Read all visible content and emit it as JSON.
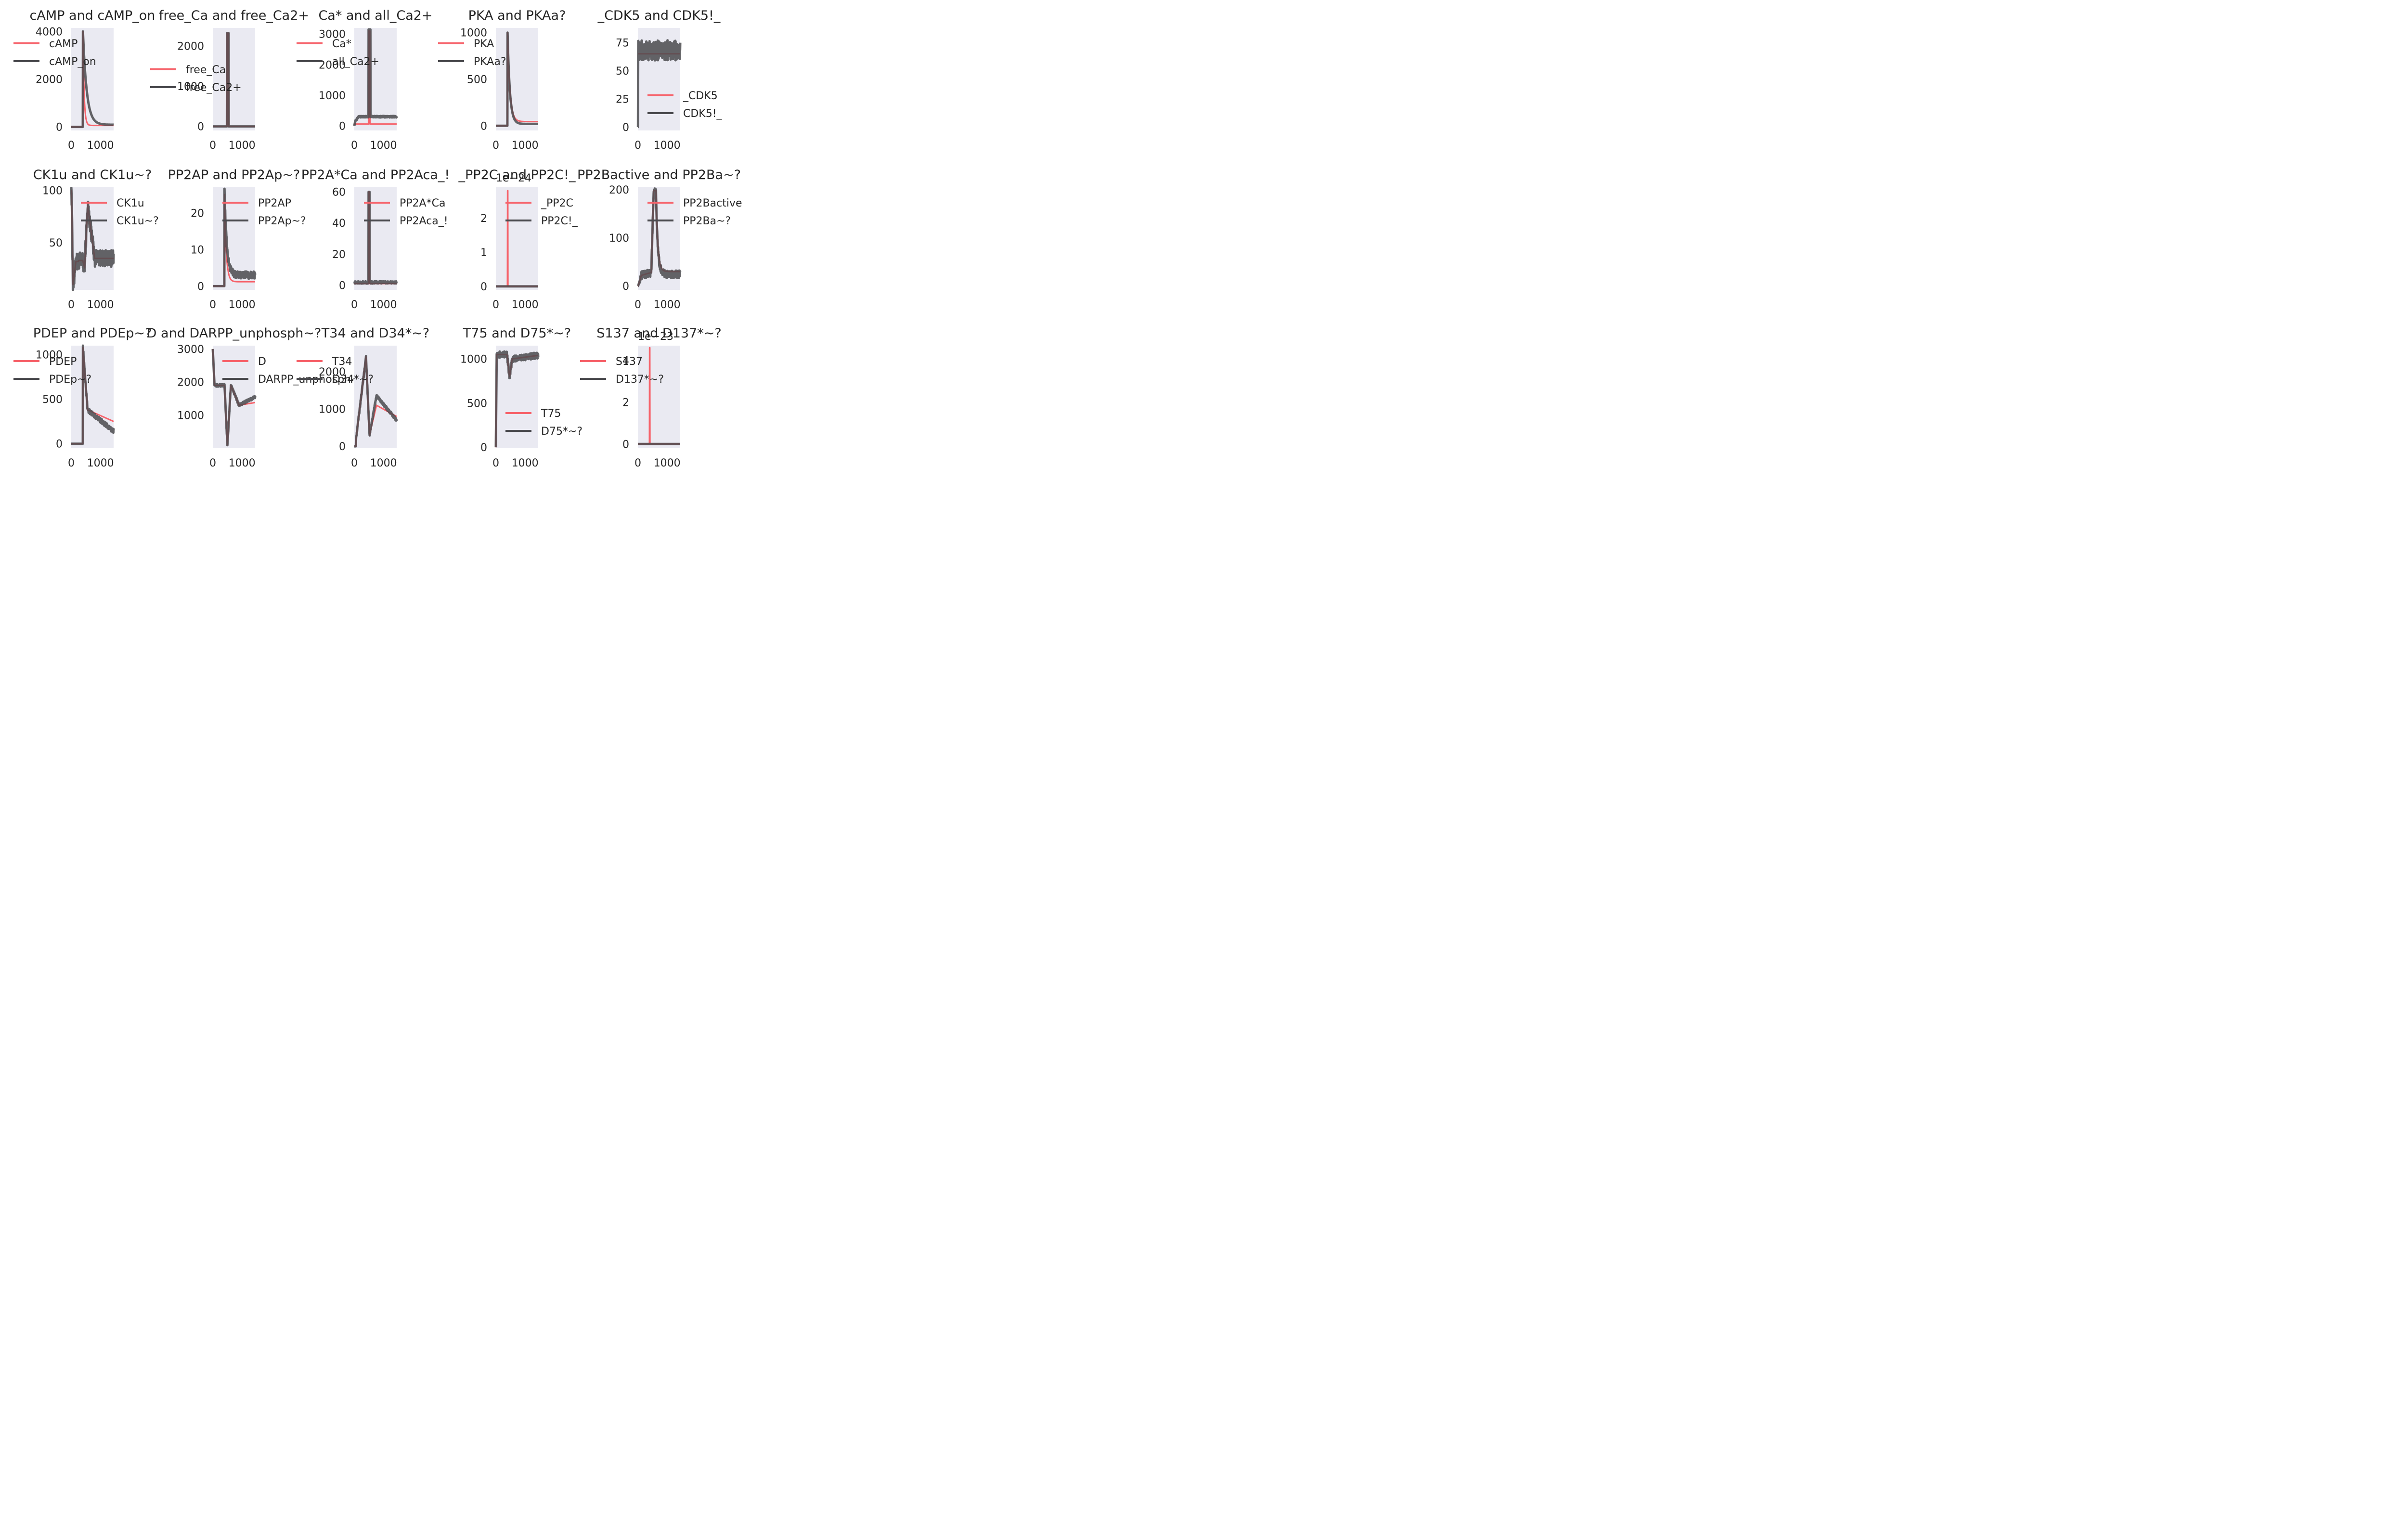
{
  "colors": {
    "background": "#eaeaf2",
    "series_a": "#f6636b",
    "series_b": "#4a4a4e",
    "overlap": "#6b1f22"
  },
  "chart_data": [
    {
      "type": "line",
      "title": "cAMP and cAMP_on",
      "xlim": [
        0,
        1450
      ],
      "ylim": [
        -150,
        4150
      ],
      "xticks": [
        0,
        1000
      ],
      "yticks": [
        0,
        2000,
        4000
      ],
      "legend_loc": "upper-left",
      "series": [
        {
          "name": "cAMP",
          "kind": "spike_decay",
          "base": 0,
          "t0": 400,
          "peak": 4000,
          "tail": 60,
          "tau": 40
        },
        {
          "name": "cAMP_on",
          "kind": "spike_decay",
          "base": 0,
          "t0": 400,
          "peak": 4000,
          "tail": 90,
          "tau": 130
        }
      ]
    },
    {
      "type": "line",
      "title": "free_Ca and free_Ca2+",
      "xlim": [
        0,
        1450
      ],
      "ylim": [
        -100,
        2450
      ],
      "xticks": [
        0,
        1000
      ],
      "yticks": [
        0,
        1000,
        2000
      ],
      "legend_loc": "center-left",
      "series": [
        {
          "name": "free_Ca",
          "kind": "pulse",
          "base": 0,
          "t0": 490,
          "peak": 2320,
          "width": 50
        },
        {
          "name": "free_Ca2+",
          "kind": "pulse",
          "base": 0,
          "t0": 490,
          "peak": 2320,
          "width": 50
        }
      ]
    },
    {
      "type": "line",
      "title": "Ca* and all_Ca2+",
      "xlim": [
        0,
        1450
      ],
      "ylim": [
        -150,
        3200
      ],
      "xticks": [
        0,
        1000
      ],
      "yticks": [
        0,
        1000,
        2000,
        3000
      ],
      "legend_loc": "upper-left",
      "series": [
        {
          "name": "Ca*",
          "kind": "pulse",
          "base": 60,
          "t0": 490,
          "peak": 3100,
          "width": 40,
          "after": 60
        },
        {
          "name": "all_Ca2+",
          "kind": "ramp_pulse",
          "base": 300,
          "t0": 490,
          "peak": 3150,
          "width": 60,
          "after": 300
        }
      ]
    },
    {
      "type": "line",
      "title": "PKA and PKAa?",
      "xlim": [
        0,
        1450
      ],
      "ylim": [
        -50,
        1050
      ],
      "xticks": [
        0,
        1000
      ],
      "yticks": [
        0,
        500,
        1000
      ],
      "legend_loc": "upper-left",
      "series": [
        {
          "name": "PKA",
          "kind": "spike_decay",
          "base": 0,
          "t0": 400,
          "peak": 1000,
          "tail": 45,
          "tau": 80
        },
        {
          "name": "PKAa?",
          "kind": "spike_decay",
          "base": 0,
          "t0": 400,
          "peak": 1000,
          "tail": 20,
          "tau": 80
        }
      ]
    },
    {
      "type": "line",
      "title": "_CDK5 and CDK5!_",
      "xlim": [
        0,
        1450
      ],
      "ylim": [
        -3,
        88
      ],
      "xticks": [
        0,
        1000
      ],
      "yticks": [
        0,
        25,
        50,
        75
      ],
      "legend_loc": "center-right",
      "series": [
        {
          "name": "_CDK5",
          "kind": "flat",
          "base": 65,
          "level": 65
        },
        {
          "name": "CDK5!_",
          "kind": "noisy_flat",
          "base": 0,
          "level": 68,
          "amp": 9
        }
      ]
    },
    {
      "type": "line",
      "title": "CK1u and CK1u~?",
      "xlim": [
        0,
        1450
      ],
      "ylim": [
        5,
        103
      ],
      "xticks": [
        0,
        1000
      ],
      "yticks": [
        50,
        100
      ],
      "legend_loc": "upper-right",
      "series": [
        {
          "name": "CK1u",
          "kind": "ck1",
          "noise": 0
        },
        {
          "name": "CK1u~?",
          "kind": "ck1",
          "noise": 8
        }
      ]
    },
    {
      "type": "line",
      "title": "PP2AP and PP2Ap~?",
      "xlim": [
        0,
        1450
      ],
      "ylim": [
        -1,
        27
      ],
      "xticks": [
        0,
        1000
      ],
      "yticks": [
        0,
        10,
        20
      ],
      "legend_loc": "upper-right",
      "series": [
        {
          "name": "PP2AP",
          "kind": "spike_decay",
          "base": 0,
          "t0": 400,
          "peak": 25,
          "tail": 1.2,
          "tau": 60
        },
        {
          "name": "PP2Ap~?",
          "kind": "noisy_spike",
          "base": 0,
          "t0": 400,
          "peak": 25,
          "tail": 2,
          "tau": 80,
          "amp": 2
        }
      ]
    },
    {
      "type": "line",
      "title": "PP2A*Ca and PP2Aca_!",
      "xlim": [
        0,
        1450
      ],
      "ylim": [
        -3,
        63
      ],
      "xticks": [
        0,
        1000
      ],
      "yticks": [
        0,
        20,
        40,
        60
      ],
      "legend_loc": "upper-right",
      "series": [
        {
          "name": "PP2A*Ca",
          "kind": "pulse",
          "base": 1,
          "t0": 490,
          "peak": 60,
          "width": 30,
          "after": 1
        },
        {
          "name": "PP2Aca_!",
          "kind": "noisy_pulse",
          "base": 1,
          "t0": 490,
          "peak": 60,
          "width": 30,
          "amp": 1.5
        }
      ]
    },
    {
      "type": "line",
      "title": "_PP2C and PP2C!_",
      "xlim": [
        0,
        1450
      ],
      "ylim": [
        -1e-25,
        2.9e-24
      ],
      "xticks": [
        0,
        1000
      ],
      "yticks": [
        0,
        1,
        2
      ],
      "yexp": "1e−24",
      "legend_loc": "upper-right",
      "series": [
        {
          "name": "_PP2C",
          "kind": "pulse",
          "base": 0,
          "t0": 400,
          "peak": 2.8e-24,
          "width": 10,
          "after": 0
        },
        {
          "name": "PP2C!_",
          "kind": "flat",
          "base": 0,
          "level": 0
        }
      ]
    },
    {
      "type": "line",
      "title": "PP2Bactive and PP2Ba~?",
      "xlim": [
        0,
        1450
      ],
      "ylim": [
        -8,
        205
      ],
      "xticks": [
        0,
        1000
      ],
      "yticks": [
        0,
        100,
        200
      ],
      "legend_loc": "upper-right",
      "series": [
        {
          "name": "PP2Bactive",
          "kind": "pp2b",
          "noise": 0
        },
        {
          "name": "PP2Ba~?",
          "kind": "pp2b",
          "noise": 8
        }
      ]
    },
    {
      "type": "line",
      "title": "PDEP and PDEp~?",
      "xlim": [
        0,
        1450
      ],
      "ylim": [
        -50,
        1100
      ],
      "xticks": [
        0,
        1000
      ],
      "yticks": [
        0,
        500,
        1000
      ],
      "legend_loc": "upper-left",
      "series": [
        {
          "name": "PDEP",
          "kind": "pdep",
          "noise": 0
        },
        {
          "name": "PDEp~?",
          "kind": "pdep",
          "noise": 25
        }
      ]
    },
    {
      "type": "line",
      "title": "D and DARPP_unphosph~?",
      "xlim": [
        0,
        1450
      ],
      "ylim": [
        0,
        3100
      ],
      "xticks": [
        0,
        1000
      ],
      "yticks": [
        1000,
        2000,
        3000
      ],
      "legend_loc": "upper-right",
      "series": [
        {
          "name": "D",
          "kind": "darpp",
          "noise": 0
        },
        {
          "name": "DARPP_unphosph~?",
          "kind": "darpp",
          "noise": 40
        }
      ]
    },
    {
      "type": "line",
      "title": "T34 and D34*~?",
      "xlim": [
        0,
        1450
      ],
      "ylim": [
        -50,
        2700
      ],
      "xticks": [
        0,
        1000
      ],
      "yticks": [
        0,
        1000,
        2000
      ],
      "legend_loc": "upper-left",
      "series": [
        {
          "name": "T34",
          "kind": "t34",
          "noise": 0
        },
        {
          "name": "D34*~?",
          "kind": "t34",
          "noise": 40
        }
      ]
    },
    {
      "type": "line",
      "title": "T75 and D75*~?",
      "xlim": [
        0,
        1450
      ],
      "ylim": [
        -10,
        1150
      ],
      "xticks": [
        0,
        1000
      ],
      "yticks": [
        0,
        500,
        1000
      ],
      "legend_loc": "lower-right",
      "series": [
        {
          "name": "T75",
          "kind": "t75",
          "noise": 0
        },
        {
          "name": "D75*~?",
          "kind": "t75",
          "noise": 35
        }
      ]
    },
    {
      "type": "line",
      "title": "S137 and D137*~?",
      "xlim": [
        0,
        1450
      ],
      "ylim": [
        -2e-24,
        4.7e-23
      ],
      "xticks": [
        0,
        1000
      ],
      "yticks": [
        0,
        2,
        4
      ],
      "yexp": "1e−23",
      "legend_loc": "upper-left",
      "series": [
        {
          "name": "S137",
          "kind": "pulse",
          "base": 0,
          "t0": 400,
          "peak": 4.6e-23,
          "width": 10,
          "after": 0
        },
        {
          "name": "D137*~?",
          "kind": "flat",
          "base": 0,
          "level": 0
        }
      ]
    }
  ]
}
